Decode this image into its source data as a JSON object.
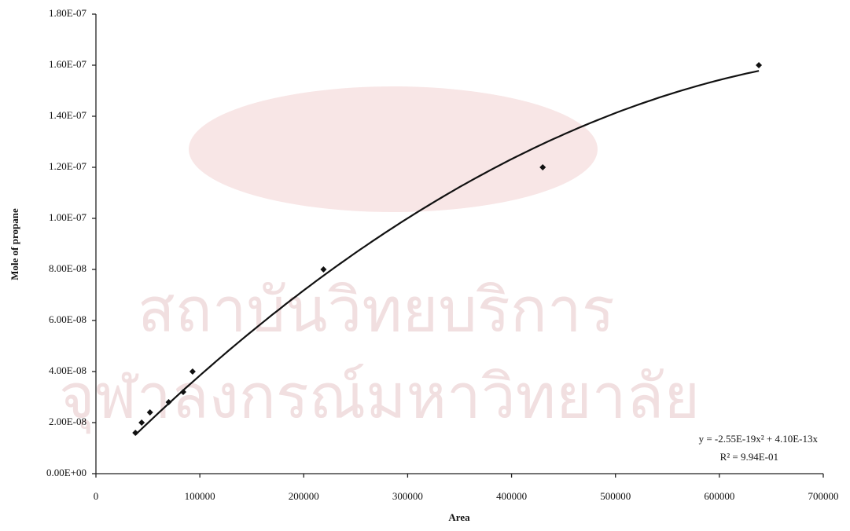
{
  "watermark": [
    "สถาบันวิทยบริการ",
    "จุฬาลงกรณ์มหาวิทยาลัย"
  ],
  "chart_data": {
    "type": "scatter",
    "x_label": "Area",
    "y_label": "Mole of propane",
    "series": [
      {
        "color": "#111111",
        "x": [
          38000,
          44000,
          52000,
          70000,
          84000,
          93000,
          219000,
          430000,
          638000
        ],
        "values": [
          1.6e-08,
          2e-08,
          2.4e-08,
          2.8e-08,
          3.2e-08,
          4e-08,
          8e-08,
          1.2e-07,
          1.6e-07
        ]
      }
    ],
    "trendline": {
      "equation": "y = -2.55E-19x² + 4.10E-13x",
      "r2": "R² = 9.94E-01",
      "color": "#111111"
    },
    "xlim": [
      0,
      700000
    ],
    "xticks": [
      0,
      100000,
      200000,
      300000,
      400000,
      500000,
      600000,
      700000
    ],
    "ylim": [
      0,
      1.8e-07
    ],
    "yticks": [
      {
        "value": 0,
        "label": "0.00E+00"
      },
      {
        "value": 2e-08,
        "label": "2.00E-08"
      },
      {
        "value": 4e-08,
        "label": "4.00E-08"
      },
      {
        "value": 6e-08,
        "label": "6.00E-08"
      },
      {
        "value": 8e-08,
        "label": "8.00E-08"
      },
      {
        "value": 1e-07,
        "label": "1.00E-07"
      },
      {
        "value": 1.2e-07,
        "label": "1.20E-07"
      },
      {
        "value": 1.4e-07,
        "label": "1.40E-07"
      },
      {
        "value": 1.6e-07,
        "label": "1.60E-07"
      },
      {
        "value": 1.8e-07,
        "label": "1.80E-07"
      }
    ],
    "grid": false
  }
}
